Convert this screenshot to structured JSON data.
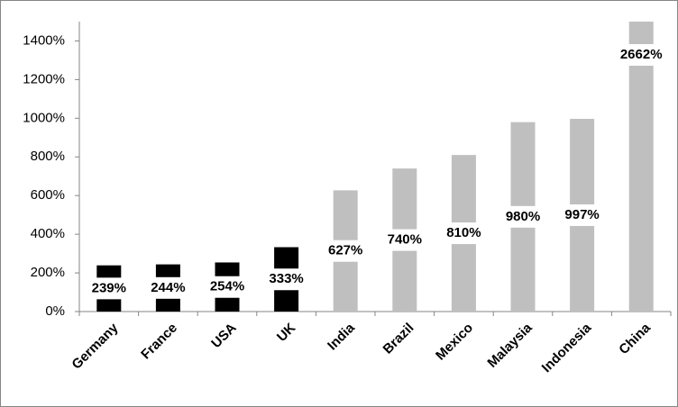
{
  "chart_data": {
    "type": "bar",
    "categories": [
      "Germany",
      "France",
      "USA",
      "UK",
      "India",
      "Brazil",
      "Mexico",
      "Malaysia",
      "Indonesia",
      "China"
    ],
    "values": [
      239,
      244,
      254,
      333,
      627,
      740,
      810,
      980,
      997,
      2662
    ],
    "value_labels": [
      "239%",
      "244%",
      "254%",
      "333%",
      "627%",
      "740%",
      "810%",
      "980%",
      "997%",
      "2662%"
    ],
    "colors": [
      "#000000",
      "#000000",
      "#000000",
      "#000000",
      "#bfbfbf",
      "#bfbfbf",
      "#bfbfbf",
      "#bfbfbf",
      "#bfbfbf",
      "#bfbfbf"
    ],
    "ylim": [
      0,
      1500
    ],
    "yticks": [
      {
        "value": 0,
        "label": "0%"
      },
      {
        "value": 200,
        "label": "200%"
      },
      {
        "value": 400,
        "label": "400%"
      },
      {
        "value": 600,
        "label": "600%"
      },
      {
        "value": 800,
        "label": "800%"
      },
      {
        "value": 1000,
        "label": "1000%"
      },
      {
        "value": 1200,
        "label": "1200%"
      },
      {
        "value": 1400,
        "label": "1400%"
      }
    ],
    "grid": false
  }
}
